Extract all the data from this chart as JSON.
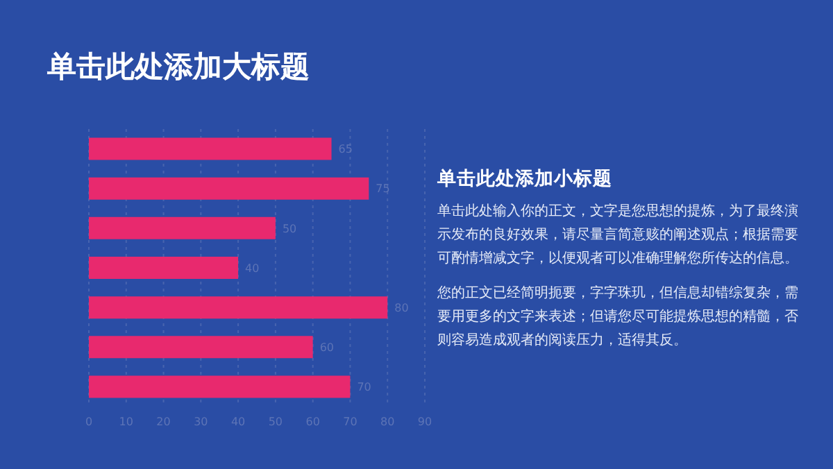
{
  "chart_data": {
    "type": "bar",
    "orientation": "horizontal",
    "title": "单击此处添加大标题",
    "subtitle": "单击此处添加小标题",
    "annotations": [
      "单击此处输入你的正文，文字是您思想的提炼，为了最终演示发布的良好效果，请尽量言简意赅的阐述观点；根据需要可酌情增减文字，以便观者可以准确理解您所传达的信息。",
      "您的正文已经简明扼要，字字珠玑，但信息却错综复杂，需要用更多的文字来表述；但请您尽可能提炼思想的精髓，否则容易造成观者的阅读压力，适得其反。"
    ],
    "categories": [
      null,
      null,
      null,
      null,
      null,
      null,
      null
    ],
    "values": [
      65,
      75,
      50,
      40,
      80,
      60,
      70
    ],
    "color": "#e8296e",
    "xlim": [
      0,
      90
    ],
    "xticks": [
      0,
      10,
      20,
      30,
      40,
      50,
      60,
      70,
      80,
      90
    ],
    "grid": "x",
    "data_labels": true
  }
}
